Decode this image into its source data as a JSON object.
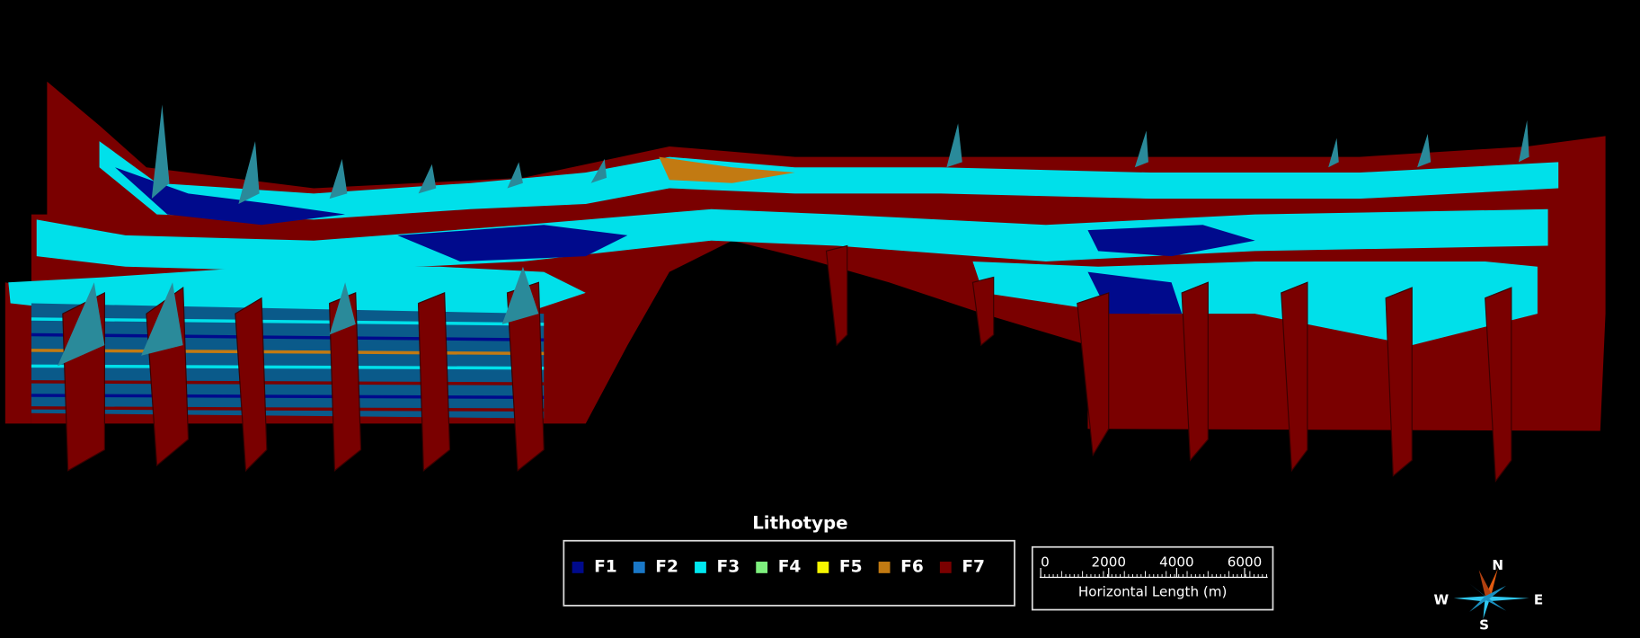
{
  "legend": {
    "title": "Lithotype",
    "items": [
      {
        "label": "F1",
        "color": "#000a8c"
      },
      {
        "label": "F2",
        "color": "#1a78c8"
      },
      {
        "label": "F3",
        "color": "#00e8f0"
      },
      {
        "label": "F4",
        "color": "#7ef07e"
      },
      {
        "label": "F5",
        "color": "#f5f500"
      },
      {
        "label": "F6",
        "color": "#c27a12"
      },
      {
        "label": "F7",
        "color": "#7a0000"
      }
    ]
  },
  "scale_bar": {
    "ticks": [
      0,
      2000,
      4000,
      6000
    ],
    "label": "Horizontal Length (m)"
  },
  "compass": {
    "north": "N",
    "south": "S",
    "west": "W",
    "east": "E"
  }
}
